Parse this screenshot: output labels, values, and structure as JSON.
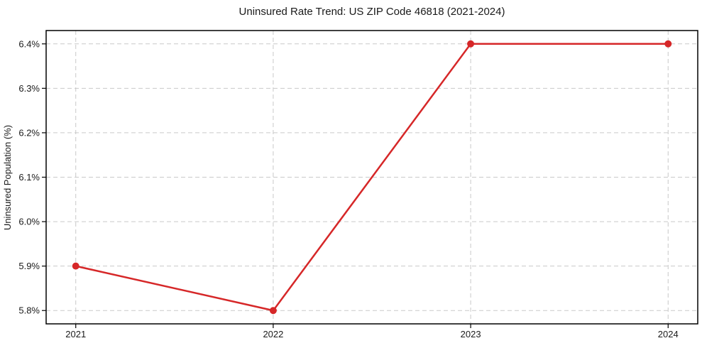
{
  "figure": {
    "background": "#ffffff"
  },
  "chart_data": {
    "type": "line",
    "title": "Uninsured Rate Trend: US ZIP Code 46818 (2021-2024)",
    "xlabel": "",
    "ylabel": "Uninsured Population (%)",
    "x": [
      2021,
      2022,
      2023,
      2024
    ],
    "xtick_labels": [
      "2021",
      "2022",
      "2023",
      "2024"
    ],
    "series": [
      {
        "name": "uninsured-rate",
        "values": [
          5.9,
          5.8,
          6.4,
          6.4
        ],
        "color": "#d62728",
        "marker": "circle",
        "line_width": 2.5,
        "marker_radius": 5
      }
    ],
    "yticks": [
      5.8,
      5.9,
      6.0,
      6.1,
      6.2,
      6.3,
      6.4
    ],
    "ytick_labels": [
      "5.8%",
      "5.9%",
      "6.0%",
      "6.1%",
      "6.2%",
      "6.3%",
      "6.4%"
    ],
    "xlim": [
      2020.85,
      2024.15
    ],
    "ylim": [
      5.77,
      6.43
    ],
    "grid": true,
    "grid_style": "dashed",
    "legend_position": "none",
    "colors": {
      "line": "#d62728",
      "grid": "#c9c9c9",
      "spine": "#000000",
      "text": "#1a1a1a"
    }
  }
}
